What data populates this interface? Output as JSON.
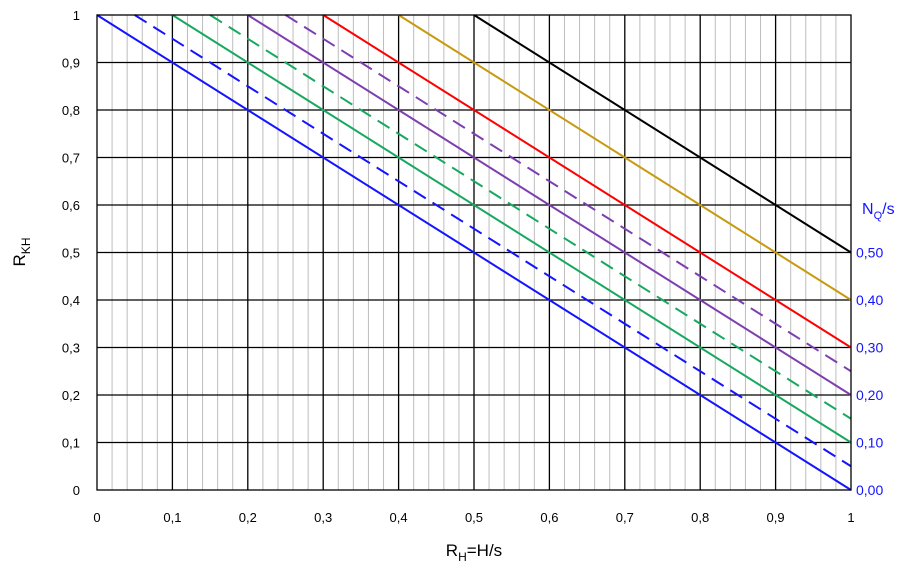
{
  "chart_data": {
    "type": "line",
    "xlabel": {
      "main": "R",
      "sub": "H",
      "rest": "=H/s"
    },
    "ylabel": {
      "main": "R",
      "sub": "KH"
    },
    "y2label": {
      "main": "N",
      "sub": "Q",
      "rest": "/s"
    },
    "xlim": [
      0,
      1
    ],
    "ylim": [
      0,
      1
    ],
    "grid": true,
    "minor_grid_step_x": 0.02,
    "x_ticks": [
      "0",
      "0,1",
      "0,2",
      "0,3",
      "0,4",
      "0,5",
      "0,6",
      "0,7",
      "0,8",
      "0,9",
      "1"
    ],
    "y_ticks": [
      "0",
      "0,1",
      "0,2",
      "0,3",
      "0,4",
      "0,5",
      "0,6",
      "0,7",
      "0,8",
      "0,9",
      "1"
    ],
    "y2_ticks": [
      "0,00",
      "0,10",
      "0,20",
      "0,30",
      "0,40",
      "0,50"
    ],
    "y2_tick_values": [
      0,
      0.1,
      0.2,
      0.3,
      0.4,
      0.5
    ],
    "series": [
      {
        "nq": 0.0,
        "color": "#1414ff",
        "dash": false,
        "points": [
          [
            0,
            1
          ],
          [
            1,
            0
          ]
        ]
      },
      {
        "nq": 0.05,
        "color": "#1414ff",
        "dash": true,
        "points": [
          [
            0.05,
            1
          ],
          [
            1,
            0.05
          ]
        ]
      },
      {
        "nq": 0.1,
        "color": "#18a860",
        "dash": false,
        "points": [
          [
            0.1,
            1
          ],
          [
            1,
            0.1
          ]
        ]
      },
      {
        "nq": 0.15,
        "color": "#18a860",
        "dash": true,
        "points": [
          [
            0.15,
            1
          ],
          [
            1,
            0.15
          ]
        ]
      },
      {
        "nq": 0.2,
        "color": "#7d3fb0",
        "dash": false,
        "points": [
          [
            0.2,
            1
          ],
          [
            1,
            0.2
          ]
        ]
      },
      {
        "nq": 0.25,
        "color": "#7d3fb0",
        "dash": true,
        "points": [
          [
            0.25,
            1
          ],
          [
            1,
            0.25
          ]
        ]
      },
      {
        "nq": 0.3,
        "color": "#ff0000",
        "dash": false,
        "points": [
          [
            0.3,
            1
          ],
          [
            1,
            0.3
          ]
        ]
      },
      {
        "nq": 0.4,
        "color": "#c79a10",
        "dash": false,
        "points": [
          [
            0.4,
            1
          ],
          [
            1,
            0.4
          ]
        ]
      },
      {
        "nq": 0.5,
        "color": "#000000",
        "dash": false,
        "points": [
          [
            0.5,
            1
          ],
          [
            1,
            0.5
          ]
        ]
      }
    ]
  }
}
